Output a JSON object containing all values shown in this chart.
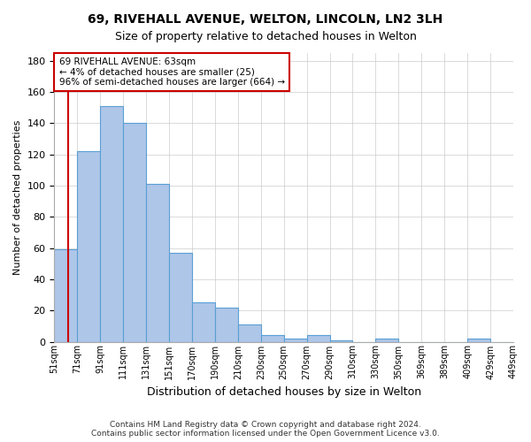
{
  "title_line1": "69, RIVEHALL AVENUE, WELTON, LINCOLN, LN2 3LH",
  "title_line2": "Size of property relative to detached houses in Welton",
  "xlabel": "Distribution of detached houses by size in Welton",
  "ylabel": "Number of detached properties",
  "bin_labels": [
    "51sqm",
    "71sqm",
    "91sqm",
    "111sqm",
    "131sqm",
    "151sqm",
    "170sqm",
    "190sqm",
    "210sqm",
    "230sqm",
    "250sqm",
    "270sqm",
    "290sqm",
    "310sqm",
    "330sqm",
    "350sqm",
    "369sqm",
    "389sqm",
    "409sqm",
    "429sqm",
    "449sqm"
  ],
  "bar_values": [
    59,
    122,
    151,
    140,
    101,
    57,
    25,
    22,
    11,
    4,
    2,
    4,
    1,
    0,
    2,
    0,
    0,
    0,
    2,
    0
  ],
  "bar_color": "#aec6e8",
  "bar_edge_color": "#5a9fd4",
  "property_line_x": 0.6,
  "annotation_text": "69 RIVEHALL AVENUE: 63sqm\n← 4% of detached houses are smaller (25)\n96% of semi-detached houses are larger (664) →",
  "annotation_box_color": "#ffffff",
  "annotation_box_edge": "#cc0000",
  "red_line_color": "#cc0000",
  "ylim": [
    0,
    185
  ],
  "yticks": [
    0,
    20,
    40,
    60,
    80,
    100,
    120,
    140,
    160,
    180
  ],
  "footer_line1": "Contains HM Land Registry data © Crown copyright and database right 2024.",
  "footer_line2": "Contains public sector information licensed under the Open Government Licence v3.0.",
  "background_color": "#ffffff",
  "grid_color": "#cccccc"
}
